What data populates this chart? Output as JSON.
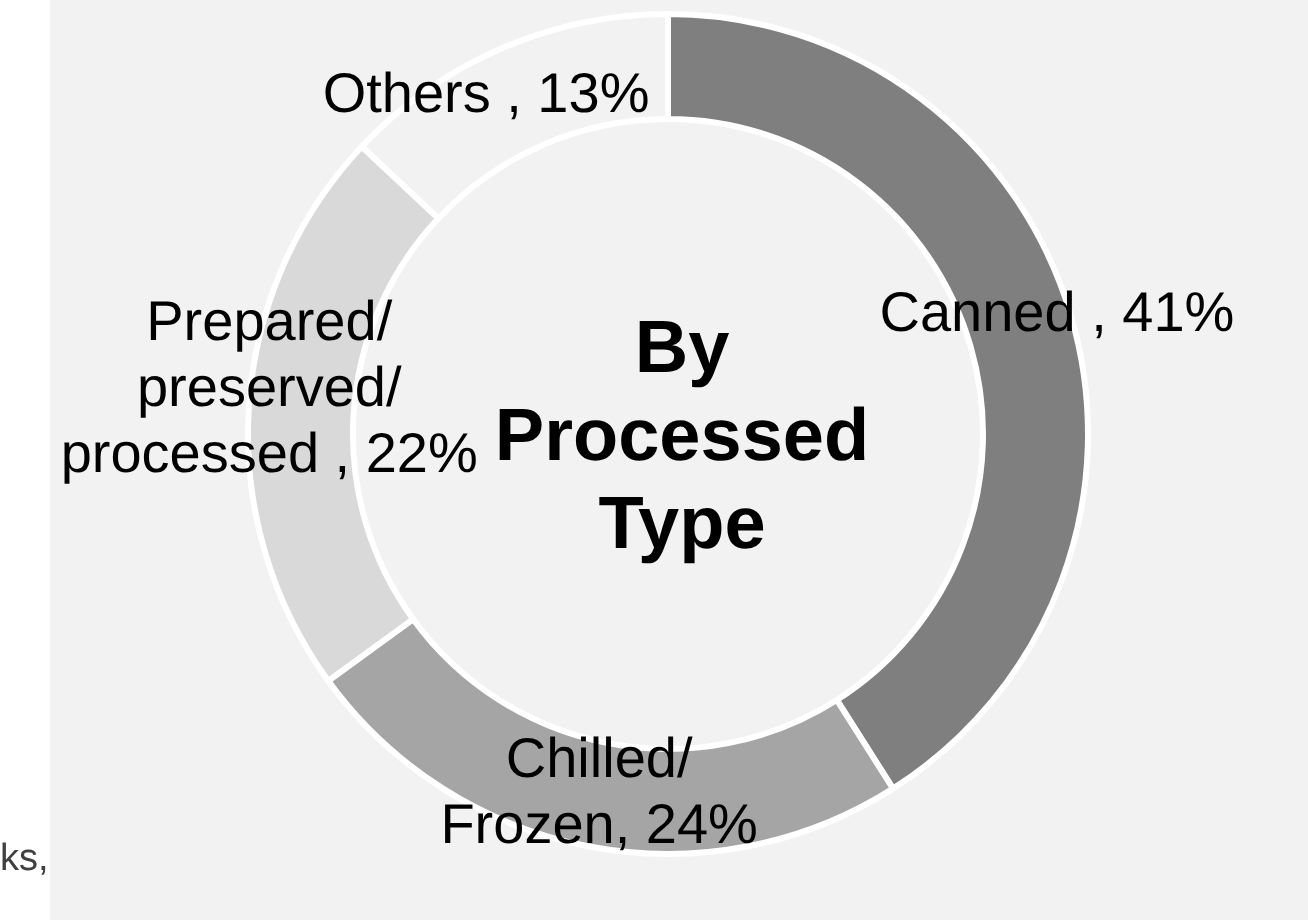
{
  "chart_data": {
    "type": "donut",
    "title": "By Processed Type",
    "categories": [
      "Canned",
      "Chilled/Frozen",
      "Prepared/preserved/processed",
      "Others"
    ],
    "values": [
      41,
      24,
      22,
      13
    ],
    "colors": [
      "#7f7f7f",
      "#a5a5a5",
      "#d9d9d9",
      "#f2f2f2"
    ],
    "value_labels": [
      "41%",
      "24%",
      "22%",
      "13%"
    ],
    "annotations": [
      "ks,"
    ]
  }
}
